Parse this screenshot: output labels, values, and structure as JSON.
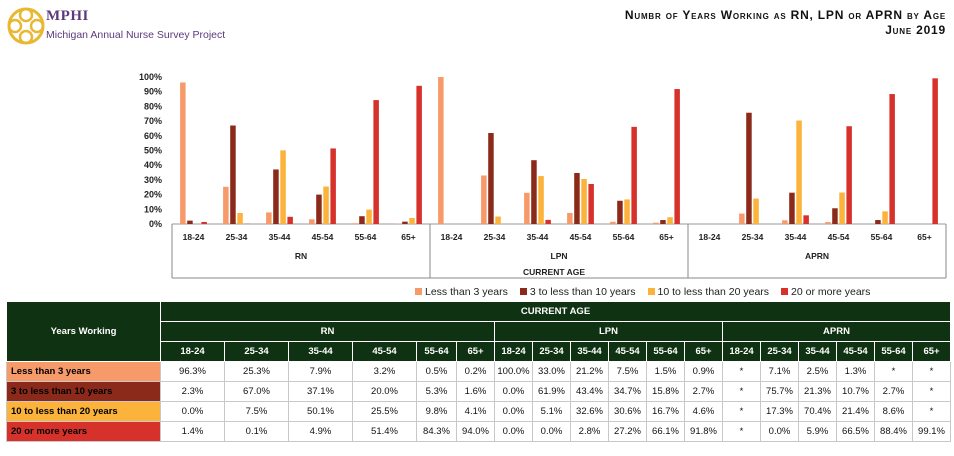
{
  "header": {
    "brand": "MPHI",
    "project": "Michigan Annual Nurse Survey Project",
    "title_line1": "Numbr of Years Working as RN, LPN or APRN by Age",
    "title_line2": "June 2019",
    "logo_icon": "mphi-emblem-icon"
  },
  "colors": {
    "less_than_3": "#f79a6a",
    "three_to_10": "#8b2a1a",
    "ten_to_20": "#fbb33b",
    "twenty_plus": "#d6322b",
    "table_header": "#0f3212"
  },
  "chart_data": {
    "type": "bar",
    "xlabel": "CURRENT AGE",
    "ylim": [
      0,
      100
    ],
    "yticks": [
      "0%",
      "10%",
      "20%",
      "30%",
      "40%",
      "50%",
      "60%",
      "70%",
      "80%",
      "90%",
      "100%"
    ],
    "groups": [
      "RN",
      "LPN",
      "APRN"
    ],
    "categories": [
      "18-24",
      "25-34",
      "35-44",
      "45-54",
      "55-64",
      "65+"
    ],
    "series": [
      {
        "name": "Less than 3 years",
        "color": "#f79a6a",
        "RN": [
          96.3,
          25.3,
          7.9,
          3.2,
          0.5,
          0.2
        ],
        "LPN": [
          100.0,
          33.0,
          21.2,
          7.5,
          1.5,
          0.9
        ],
        "APRN": [
          null,
          7.1,
          2.5,
          1.3,
          null,
          null
        ]
      },
      {
        "name": "3 to less than 10 years",
        "color": "#8b2a1a",
        "RN": [
          2.3,
          67.0,
          37.1,
          20.0,
          5.3,
          1.6
        ],
        "LPN": [
          0.0,
          61.9,
          43.4,
          34.7,
          15.8,
          2.7
        ],
        "APRN": [
          null,
          75.7,
          21.3,
          10.7,
          2.7,
          null
        ]
      },
      {
        "name": "10 to less than 20 years",
        "color": "#fbb33b",
        "RN": [
          0.0,
          7.5,
          50.1,
          25.5,
          9.8,
          4.1
        ],
        "LPN": [
          0.0,
          5.1,
          32.6,
          30.6,
          16.7,
          4.6
        ],
        "APRN": [
          null,
          17.3,
          70.4,
          21.4,
          8.6,
          null
        ]
      },
      {
        "name": "20 or more years",
        "color": "#d6322b",
        "RN": [
          1.4,
          0.1,
          4.9,
          51.4,
          84.3,
          94.0
        ],
        "LPN": [
          0.0,
          0.0,
          2.8,
          27.2,
          66.1,
          91.8
        ],
        "APRN": [
          null,
          0.0,
          5.9,
          66.5,
          88.4,
          99.1
        ]
      }
    ]
  },
  "table": {
    "corner_label": "Years Working",
    "super_header": "CURRENT AGE",
    "groups": [
      "RN",
      "LPN",
      "APRN"
    ],
    "ages": [
      "18-24",
      "25-34",
      "35-44",
      "45-54",
      "55-64",
      "65+"
    ],
    "rows": [
      {
        "label": "Less than 3 years",
        "color": "#f79a6a",
        "cells": [
          "96.3%",
          "25.3%",
          "7.9%",
          "3.2%",
          "0.5%",
          "0.2%",
          "100.0%",
          "33.0%",
          "21.2%",
          "7.5%",
          "1.5%",
          "0.9%",
          "*",
          "7.1%",
          "2.5%",
          "1.3%",
          "*",
          "*"
        ]
      },
      {
        "label": "3 to less than 10 years",
        "color": "#8b2a1a",
        "cells": [
          "2.3%",
          "67.0%",
          "37.1%",
          "20.0%",
          "5.3%",
          "1.6%",
          "0.0%",
          "61.9%",
          "43.4%",
          "34.7%",
          "15.8%",
          "2.7%",
          "*",
          "75.7%",
          "21.3%",
          "10.7%",
          "2.7%",
          "*"
        ]
      },
      {
        "label": "10 to less than 20 years",
        "color": "#fbb33b",
        "cells": [
          "0.0%",
          "7.5%",
          "50.1%",
          "25.5%",
          "9.8%",
          "4.1%",
          "0.0%",
          "5.1%",
          "32.6%",
          "30.6%",
          "16.7%",
          "4.6%",
          "*",
          "17.3%",
          "70.4%",
          "21.4%",
          "8.6%",
          "*"
        ]
      },
      {
        "label": "20 or more years",
        "color": "#d6322b",
        "cells": [
          "1.4%",
          "0.1%",
          "4.9%",
          "51.4%",
          "84.3%",
          "94.0%",
          "0.0%",
          "0.0%",
          "2.8%",
          "27.2%",
          "66.1%",
          "91.8%",
          "*",
          "0.0%",
          "5.9%",
          "66.5%",
          "88.4%",
          "99.1%"
        ]
      }
    ]
  }
}
